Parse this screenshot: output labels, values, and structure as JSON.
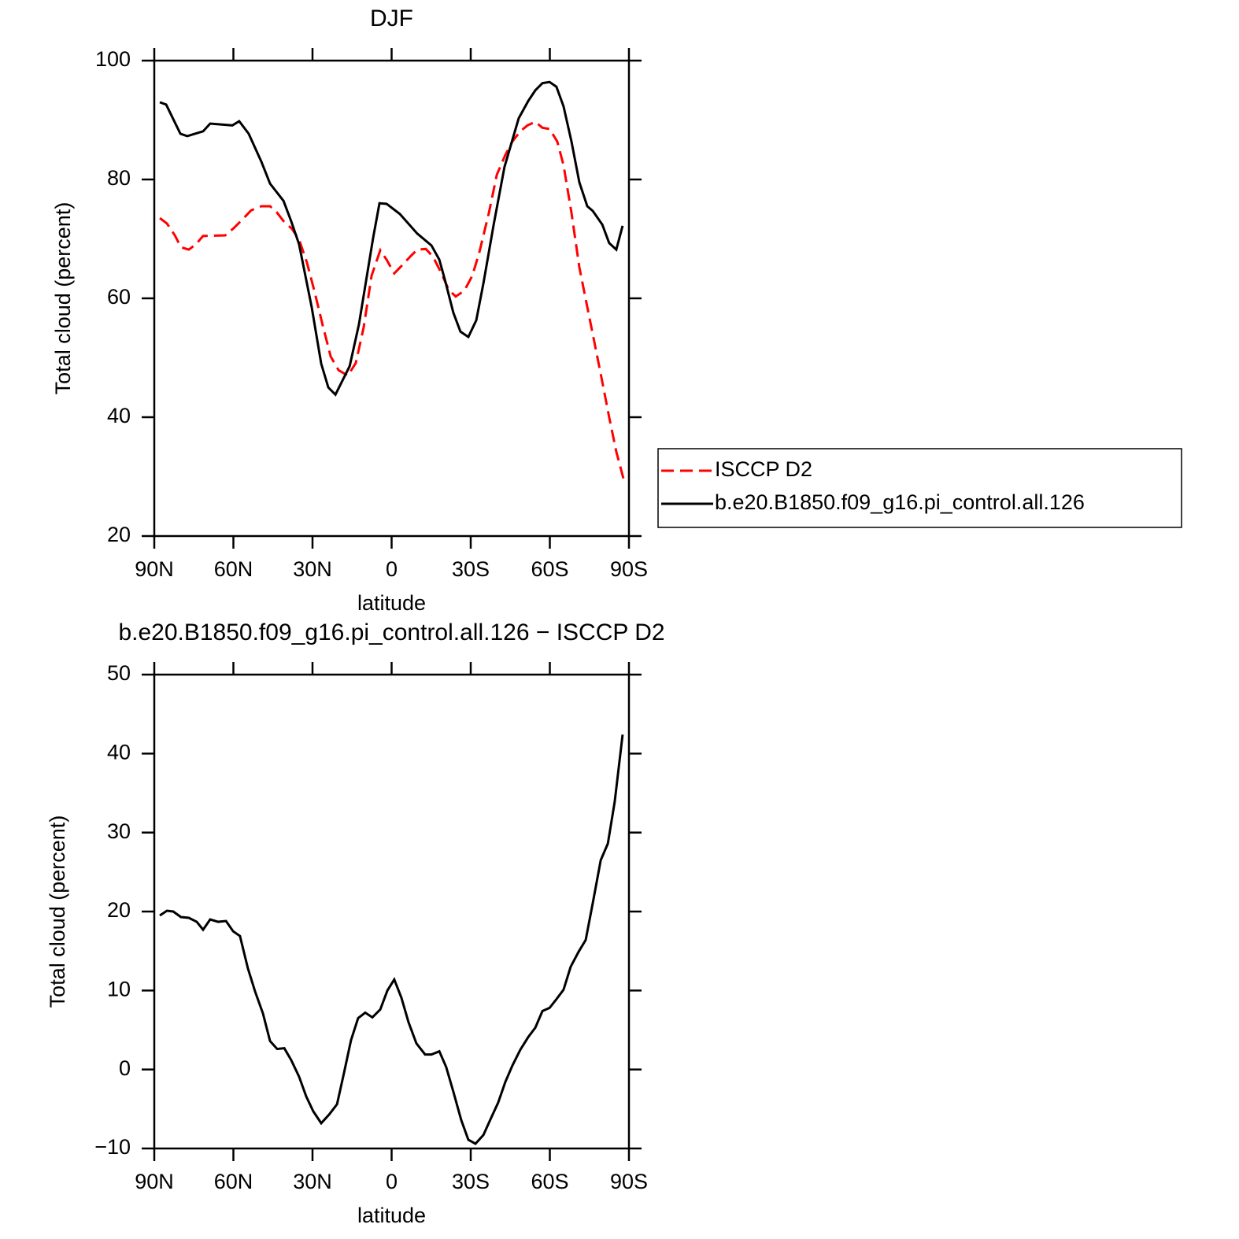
{
  "chart_data": [
    {
      "type": "line",
      "title": "DJF",
      "xlabel": "latitude",
      "ylabel": "Total cloud (percent)",
      "xlim": [
        90,
        -90
      ],
      "ylim": [
        20,
        100
      ],
      "xticks": [
        {
          "value": 90,
          "label": "90N"
        },
        {
          "value": 60,
          "label": "60N"
        },
        {
          "value": 30,
          "label": "30N"
        },
        0,
        {
          "value": -30,
          "label": "30S"
        },
        {
          "value": -60,
          "label": "60S"
        },
        {
          "value": -90,
          "label": "90S"
        }
      ],
      "yticks": [
        20,
        40,
        60,
        80,
        100
      ],
      "legend": "right",
      "series": [
        {
          "name": "ISCCP D2",
          "color": "#ff0000",
          "style": "dashed",
          "x": [
            87.9,
            85.2,
            82.2,
            79.9,
            76.9,
            74.2,
            71.5,
            63.1,
            59.9,
            56.3,
            53.3,
            49.4,
            46.1,
            43.4,
            41.0,
            37.8,
            35.1,
            32.1,
            29.1,
            26.1,
            23.1,
            20.1,
            16.6,
            13.6,
            10.6,
            7.6,
            4.3,
            1.9,
            -1.0,
            -4.3,
            -7.0,
            -9.7,
            -13.0,
            -15.7,
            -19.0,
            -21.6,
            -24.3,
            -27.6,
            -30.6,
            -33.3,
            -36.9,
            -39.9,
            -43.1,
            -45.8,
            -48.8,
            -51.5,
            -54.5,
            -57.2,
            -59.9,
            -62.8,
            -65.2,
            -68.2,
            -71.2,
            -73.9,
            -76.9,
            -79.6,
            -82.5,
            -85.2,
            -87.9
          ],
          "values": [
            73.5,
            72.6,
            70.6,
            68.6,
            68.2,
            69.1,
            70.5,
            70.6,
            71.8,
            73.4,
            74.8,
            75.5,
            75.5,
            74.4,
            73.0,
            71.7,
            69.9,
            66.0,
            60.9,
            55.4,
            50.2,
            47.9,
            47.0,
            49.1,
            55.1,
            63.8,
            68.1,
            66.5,
            64.2,
            65.7,
            67.0,
            68.2,
            68.3,
            67.0,
            64.1,
            61.5,
            60.3,
            61.3,
            63.8,
            67.8,
            74.4,
            80.8,
            84.1,
            86.4,
            88.1,
            89.1,
            89.7,
            88.7,
            88.5,
            86.4,
            82.4,
            74.4,
            65.2,
            59.2,
            52.6,
            46.6,
            40.0,
            34.2,
            29.7
          ]
        },
        {
          "name": "b.e20.B1850.f09_g16.pi_control.all.126",
          "color": "#000000",
          "style": "solid",
          "x": [
            87.9,
            85.5,
            80.1,
            77.5,
            71.5,
            68.8,
            60.4,
            57.8,
            54.2,
            49.4,
            46.1,
            41.0,
            38.1,
            35.1,
            30.3,
            26.7,
            24.0,
            21.3,
            15.9,
            12.4,
            7.0,
            4.6,
            1.9,
            -3.1,
            -9.7,
            -15.1,
            -18.1,
            -20.4,
            -23.4,
            -26.1,
            -29.1,
            -32.1,
            -34.8,
            -38.7,
            -42.8,
            -48.2,
            -51.8,
            -54.5,
            -57.2,
            -59.9,
            -62.5,
            -65.2,
            -68.2,
            -71.2,
            -74.2,
            -76.3,
            -79.9,
            -82.5,
            -85.2,
            -87.6
          ],
          "values": [
            93.0,
            92.6,
            87.7,
            87.3,
            88.1,
            89.4,
            89.1,
            89.8,
            87.7,
            83.0,
            79.3,
            76.4,
            73.0,
            69.1,
            58.5,
            49.0,
            45.0,
            43.8,
            48.6,
            55.6,
            70.2,
            76.0,
            75.9,
            74.2,
            70.9,
            68.9,
            66.5,
            62.8,
            57.6,
            54.4,
            53.5,
            56.3,
            62.5,
            72.4,
            82.1,
            90.3,
            93.2,
            95.0,
            96.2,
            96.4,
            95.6,
            92.3,
            86.4,
            79.5,
            75.5,
            74.7,
            72.4,
            69.3,
            68.2,
            72.2
          ]
        }
      ]
    },
    {
      "type": "line",
      "title": "b.e20.B1850.f09_g16.pi_control.all.126 − ISCCP D2",
      "xlabel": "latitude",
      "ylabel": "Total cloud (percent)",
      "xlim": [
        90,
        -90
      ],
      "ylim": [
        -10,
        50
      ],
      "xticks": [
        {
          "value": 90,
          "label": "90N"
        },
        {
          "value": 60,
          "label": "60N"
        },
        {
          "value": 30,
          "label": "30N"
        },
        0,
        {
          "value": -30,
          "label": "30S"
        },
        {
          "value": -60,
          "label": "60S"
        },
        {
          "value": -90,
          "label": "90S"
        }
      ],
      "yticks": [
        {
          "value": -10,
          "label": "−10"
        },
        0,
        10,
        20,
        30,
        40,
        50
      ],
      "series": [
        {
          "color": "#000000",
          "style": "solid",
          "x": [
            87.9,
            85.2,
            82.8,
            79.9,
            76.9,
            73.9,
            71.5,
            68.8,
            65.8,
            62.8,
            60.1,
            57.5,
            54.5,
            51.8,
            48.8,
            46.1,
            43.4,
            40.7,
            38.1,
            35.1,
            32.4,
            29.7,
            26.7,
            23.7,
            20.7,
            18.1,
            15.4,
            12.7,
            10.0,
            7.3,
            4.3,
            1.6,
            -1.0,
            -3.7,
            -6.4,
            -9.4,
            -12.7,
            -15.1,
            -18.1,
            -20.7,
            -23.4,
            -26.4,
            -29.1,
            -31.8,
            -34.8,
            -37.5,
            -40.4,
            -43.1,
            -45.8,
            -48.8,
            -51.8,
            -54.5,
            -57.2,
            -59.9,
            -62.5,
            -65.2,
            -67.9,
            -70.9,
            -73.6,
            -76.3,
            -79.3,
            -82.0,
            -84.6,
            -87.6
          ],
          "values": [
            19.5,
            20.1,
            20.0,
            19.3,
            19.2,
            18.7,
            17.7,
            19.0,
            18.7,
            18.8,
            17.5,
            16.9,
            12.8,
            9.9,
            7.1,
            3.6,
            2.6,
            2.7,
            1.2,
            -0.9,
            -3.4,
            -5.3,
            -6.8,
            -5.7,
            -4.4,
            -0.5,
            3.7,
            6.5,
            7.2,
            6.6,
            7.6,
            10.0,
            11.4,
            9.1,
            6.0,
            3.3,
            1.9,
            1.9,
            2.3,
            0.3,
            -2.8,
            -6.4,
            -8.9,
            -9.4,
            -8.3,
            -6.3,
            -4.2,
            -1.6,
            0.5,
            2.5,
            4.1,
            5.3,
            7.4,
            7.8,
            8.9,
            10.1,
            13.0,
            14.9,
            16.4,
            21.1,
            26.5,
            28.6,
            33.9,
            42.4
          ]
        }
      ]
    }
  ]
}
